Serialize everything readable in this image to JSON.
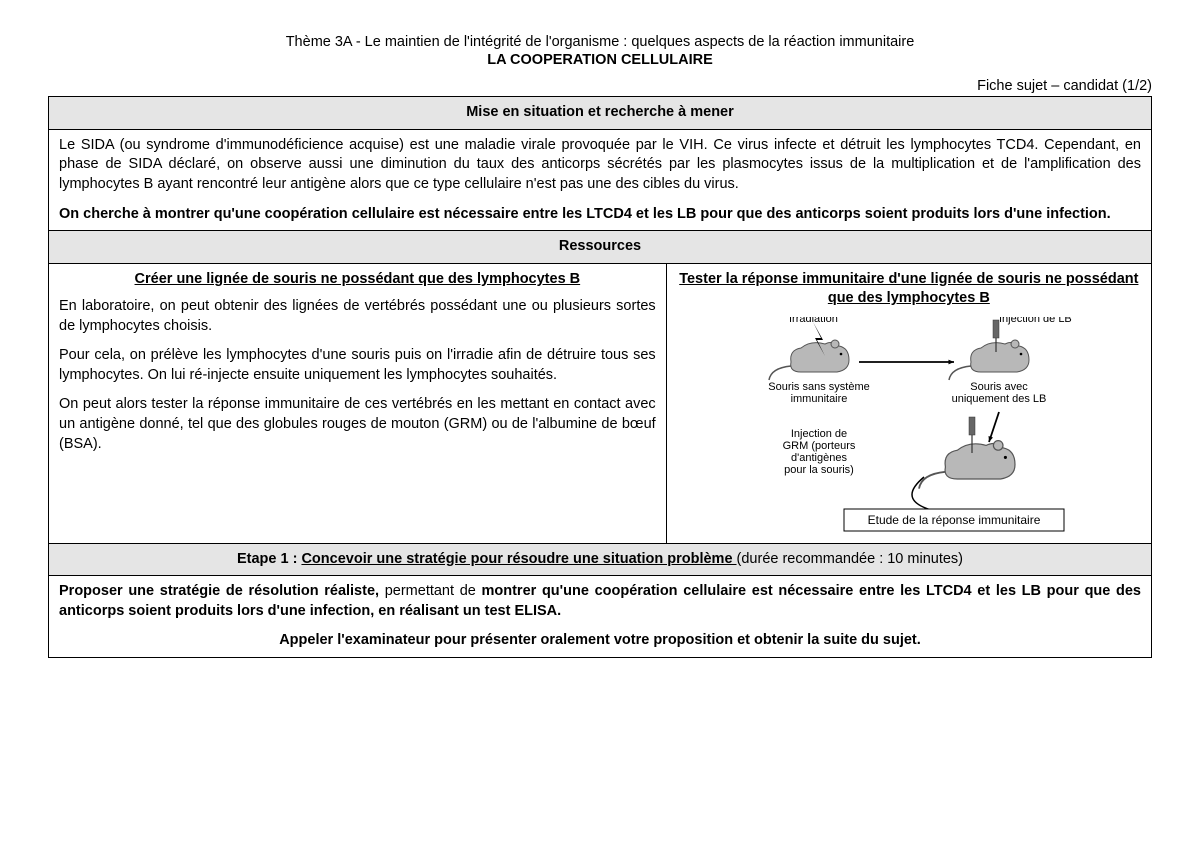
{
  "header": {
    "theme_line": "Thème 3A - Le maintien de l'intégrité de l'organisme : quelques aspects de la réaction immunitaire",
    "title": "LA COOPERATION CELLULAIRE",
    "fiche_line": "Fiche sujet – candidat (1/2)"
  },
  "situation": {
    "section_title": "Mise en situation et recherche à mener",
    "paragraph": "Le SIDA (ou syndrome d'immunodéficience acquise) est une maladie virale provoquée par le VIH. Ce virus infecte et détruit les lymphocytes TCD4. Cependant, en phase de SIDA déclaré, on observe aussi une diminution du taux des anticorps sécrétés par les plasmocytes issus de la multiplication et de l'amplification des lymphocytes B ayant rencontré leur antigène alors que ce type cellulaire n'est pas une des cibles du virus.",
    "goal": "On cherche à montrer qu'une coopération cellulaire est nécessaire entre les LTCD4 et les LB pour que des anticorps soient produits lors d'une infection."
  },
  "resources": {
    "section_title": "Ressources",
    "left": {
      "heading": "Créer une lignée de souris ne possédant que des lymphocytes B",
      "p1": "En laboratoire, on peut obtenir des lignées de vertébrés possédant une ou plusieurs sortes de lymphocytes choisis.",
      "p2": "Pour cela, on prélève les lymphocytes d'une souris puis on l'irradie afin de détruire tous ses lymphocytes. On lui ré-injecte ensuite uniquement les lymphocytes souhaités.",
      "p3": "On peut alors tester la réponse immunitaire de ces vertébrés en les mettant en contact avec un antigène donné, tel que des globules rouges de mouton (GRM) ou de l'albumine de bœuf (BSA)."
    },
    "right": {
      "heading": "Tester la réponse immunitaire d'une lignée de souris ne possédant que des lymphocytes B",
      "diagram": {
        "labels": {
          "irradiation": "Irradiation",
          "injection_lb": "Injection de LB",
          "souris_sans": "Souris sans système immunitaire",
          "souris_avec": "Souris avec uniquement des LB",
          "injection_grm": "Injection de GRM (porteurs d'antigènes pour la souris)",
          "etude": "Etude de la réponse immunitaire"
        },
        "colors": {
          "mouse_fill": "#b8b8b8",
          "mouse_stroke": "#555555",
          "arrow": "#000000",
          "box_border": "#000000",
          "bg": "#ffffff",
          "text": "#000000",
          "bolt": "#000000",
          "syringe": "#666666"
        },
        "font_size_label": 11,
        "font_size_caption": 11
      }
    }
  },
  "etape1": {
    "label": "Etape 1 : ",
    "underline": "Concevoir une stratégie pour résoudre une situation problème ",
    "duration": "(durée recommandée : 10 minutes)",
    "task_intro": "Proposer une stratégie de résolution réaliste,",
    "task_mid": " permettant de ",
    "task_bold2": "montrer qu'une coopération cellulaire est nécessaire entre les LTCD4 et les LB pour que des anticorps soient produits lors d'une infection",
    "task_tail": ", en réalisant un test ELISA.",
    "call": "Appeler l'examinateur pour présenter oralement votre proposition et obtenir la suite du sujet."
  }
}
